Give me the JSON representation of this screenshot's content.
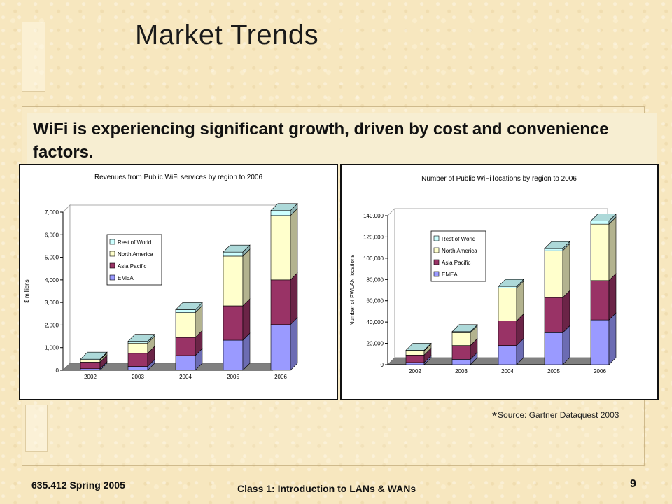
{
  "slide": {
    "title": "Market Trends",
    "headline": "WiFi is experiencing significant growth, driven by cost and convenience factors.",
    "source_asterisk": "*",
    "source": "Source: Gartner Dataquest 2003",
    "footer_left": "635.412 Spring 2005",
    "footer_center": "Class 1:  Introduction to LANs & WANs",
    "page_number": "9"
  },
  "chart_data": [
    {
      "type": "bar",
      "stacked": true,
      "title": "Revenues from Public WiFi services by region to 2006",
      "ylabel": "$ millions",
      "xlabel": "",
      "categories": [
        "2002",
        "2003",
        "2004",
        "2005",
        "2006"
      ],
      "ylim": [
        0,
        7000
      ],
      "yticks": [
        0,
        1000,
        2000,
        3000,
        4000,
        5000,
        6000,
        7000
      ],
      "ytick_labels": [
        "0",
        "1,000",
        "2,000",
        "3,000",
        "4,000",
        "5,000",
        "6,000",
        "7,000"
      ],
      "legend_position": "left-center",
      "series": [
        {
          "name": "EMEA",
          "color": "#9a9aff",
          "values": [
            70,
            170,
            650,
            1330,
            2020
          ]
        },
        {
          "name": "Asia Pacific",
          "color": "#993366",
          "values": [
            290,
            580,
            800,
            1520,
            1980
          ]
        },
        {
          "name": "North America",
          "color": "#ffffcc",
          "values": [
            100,
            450,
            1100,
            2200,
            2850
          ]
        },
        {
          "name": "Rest of World",
          "color": "#ccffff",
          "values": [
            30,
            80,
            130,
            180,
            220
          ]
        }
      ]
    },
    {
      "type": "bar",
      "stacked": true,
      "title": "Number of Public WiFi locations by region to 2006",
      "ylabel": "Number of PWLAN locations",
      "xlabel": "",
      "categories": [
        "2002",
        "2003",
        "2004",
        "2005",
        "2006"
      ],
      "ylim": [
        0,
        140000
      ],
      "yticks": [
        0,
        20000,
        40000,
        60000,
        80000,
        100000,
        120000,
        140000
      ],
      "ytick_labels": [
        "0",
        "20,000",
        "40,000",
        "60,000",
        "80,000",
        "100,000",
        "120,000",
        "140,000"
      ],
      "legend_position": "left-center",
      "series": [
        {
          "name": "EMEA",
          "color": "#9a9aff",
          "values": [
            2000,
            5000,
            18000,
            30000,
            42000
          ]
        },
        {
          "name": "Asia Pacific",
          "color": "#993366",
          "values": [
            7000,
            13000,
            23000,
            33000,
            37000
          ]
        },
        {
          "name": "North America",
          "color": "#ffffcc",
          "values": [
            4000,
            12000,
            31000,
            44000,
            53000
          ]
        },
        {
          "name": "Rest of World",
          "color": "#ccffff",
          "values": [
            500,
            1000,
            1500,
            2000,
            3000
          ]
        }
      ]
    }
  ]
}
